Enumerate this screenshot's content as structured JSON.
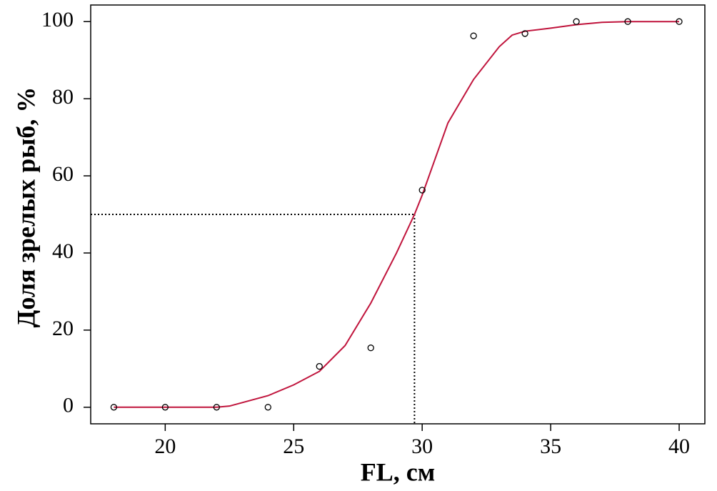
{
  "chart_data": {
    "type": "scatter",
    "xlabel": "FL, см",
    "ylabel": "Доля зрелых рыб, %",
    "xlim": [
      17.1,
      41.0
    ],
    "ylim": [
      -4.3,
      104.3
    ],
    "xticks": [
      20,
      25,
      30,
      35,
      40
    ],
    "yticks": [
      0,
      20,
      40,
      60,
      80,
      100
    ],
    "series": [
      {
        "type": "scatter",
        "color": "#000000",
        "x": [
          18,
          20,
          22,
          24,
          26,
          28,
          30,
          32,
          34,
          36,
          38,
          40
        ],
        "values": [
          0,
          0,
          0,
          0,
          10.6,
          15.4,
          56.3,
          96.3,
          96.9,
          100,
          100,
          100
        ]
      },
      {
        "type": "line",
        "color": "#c0143c",
        "x": [
          18,
          20,
          22,
          22.5,
          23,
          24,
          25,
          26,
          27,
          28,
          29,
          29.7,
          30,
          31,
          32,
          33,
          33.5,
          34,
          35,
          36,
          37,
          38,
          39,
          40
        ],
        "values": [
          0,
          0,
          0,
          0.3,
          1.2,
          3,
          5.8,
          9.3,
          16,
          27,
          40,
          50,
          55,
          73.7,
          85,
          93.5,
          96.5,
          97.5,
          98.3,
          99.2,
          99.8,
          100,
          100,
          100
        ]
      }
    ],
    "reference": {
      "x": 29.7,
      "y": 50
    }
  }
}
